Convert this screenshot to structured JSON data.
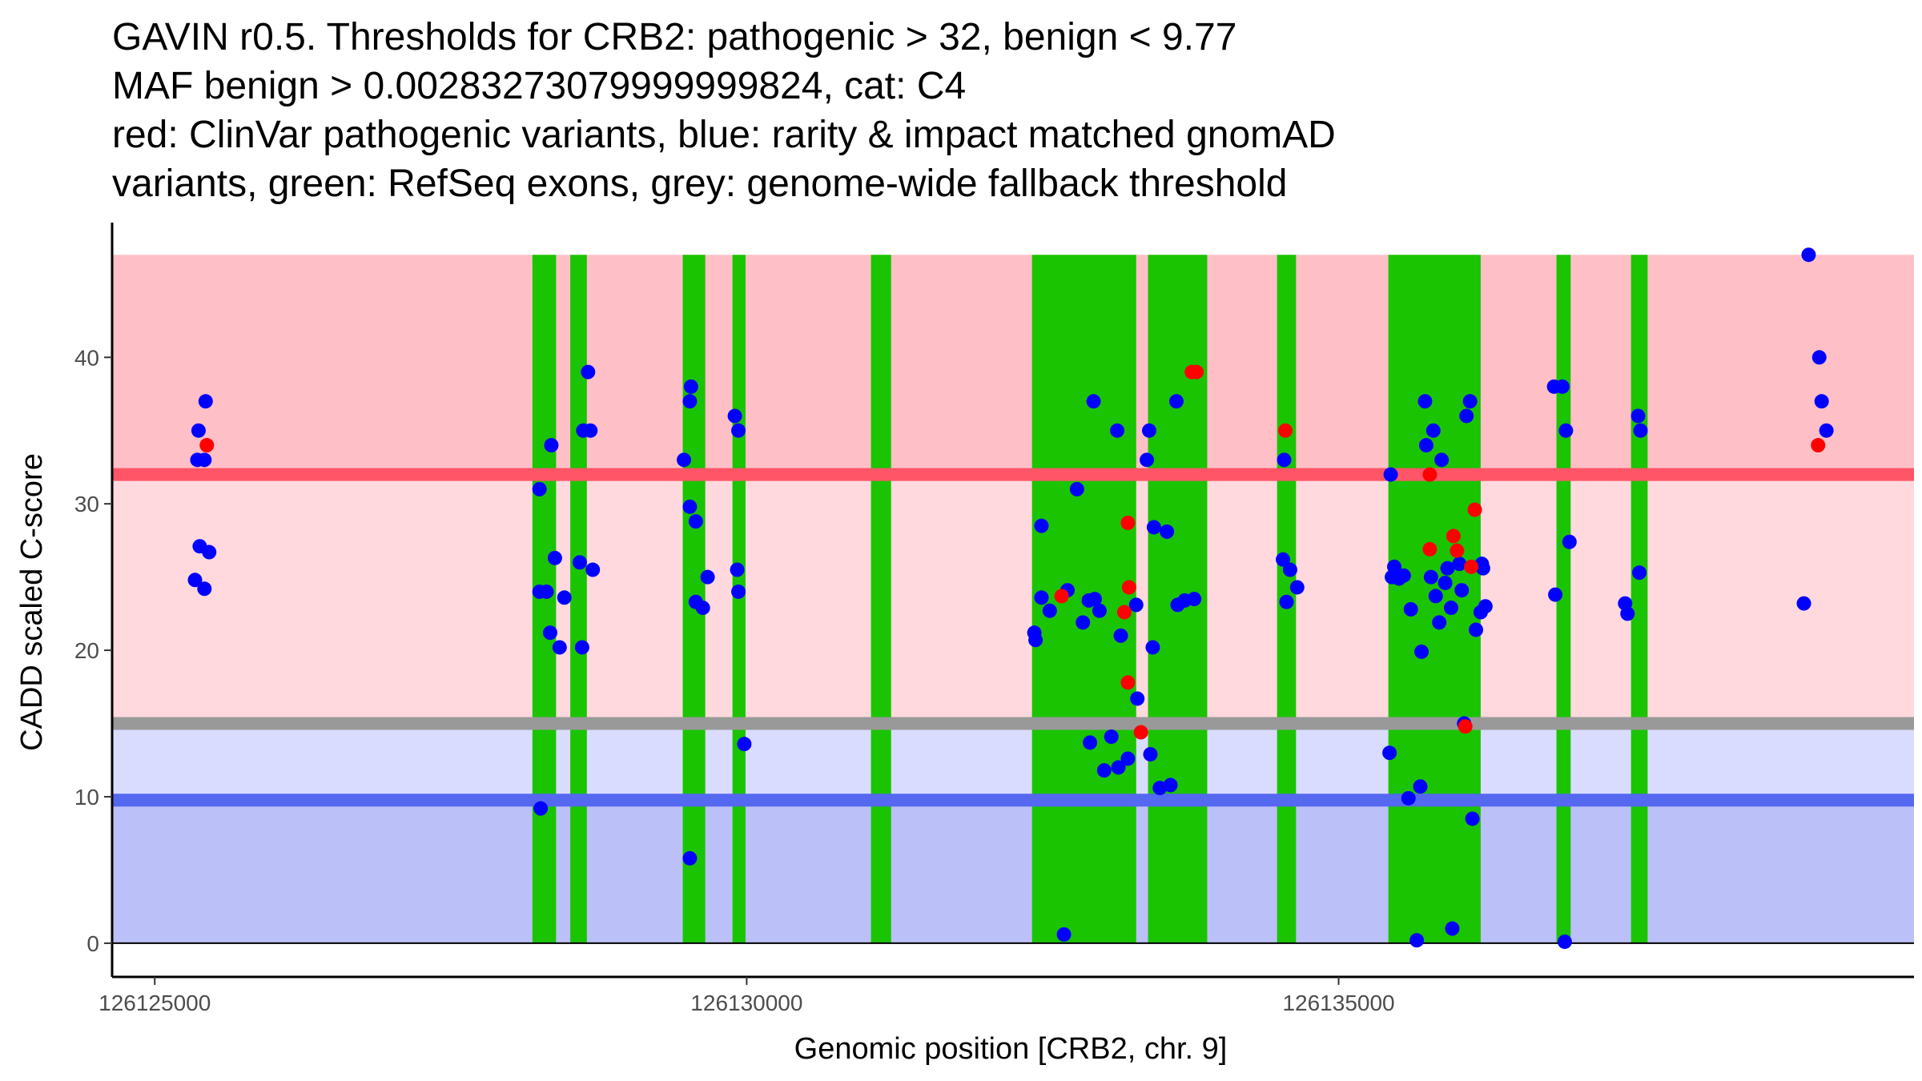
{
  "chart_data": {
    "type": "scatter",
    "title_lines": [
      "GAVIN r0.5. Thresholds for CRB2: pathogenic > 32, benign < 9.77",
      "MAF benign > 0.00283273079999999824, cat: C4",
      "red: ClinVar pathogenic variants, blue: rarity & impact matched gnomAD",
      "variants, green: RefSeq exons, grey: genome-wide fallback threshold"
    ],
    "xlabel": "Genomic position [CRB2, chr. 9]",
    "ylabel": "CADD scaled C-score",
    "xlim": [
      126124640,
      126139860
    ],
    "ylim": [
      -2.3,
      49.2
    ],
    "x_ticks": [
      126125000,
      126130000,
      126135000
    ],
    "x_tick_labels": [
      "126125000",
      "126130000",
      "126135000"
    ],
    "y_ticks": [
      0,
      10,
      20,
      30,
      40
    ],
    "y_tick_labels": [
      "0",
      "10",
      "20",
      "30",
      "40"
    ],
    "pathogenic_threshold": 32,
    "benign_threshold": 9.77,
    "fallback_threshold": 15,
    "band_top": 47,
    "colors": {
      "pathogenic_region": "#ffbfc6",
      "pathogenic_line": "#ff5566",
      "middle_pathogenic_region": "#ffd9de",
      "middle_benign_region": "#d9dcff",
      "benign_region": "#bbc0f8",
      "benign_line": "#5568f0",
      "fallback_line": "#999999",
      "exon": "#1ac400",
      "gnomad_point": "#0000ff",
      "clinvar_point": "#ff0000",
      "axis": "#000000"
    },
    "exons": [
      {
        "start": 126128190,
        "end": 126128390
      },
      {
        "start": 126128510,
        "end": 126128650
      },
      {
        "start": 126129460,
        "end": 126129650
      },
      {
        "start": 126129880,
        "end": 126129990
      },
      {
        "start": 126131050,
        "end": 126131220
      },
      {
        "start": 126132410,
        "end": 126133290
      },
      {
        "start": 126133390,
        "end": 126133890
      },
      {
        "start": 126134480,
        "end": 126134640
      },
      {
        "start": 126135420,
        "end": 126136200
      },
      {
        "start": 126136840,
        "end": 126136960
      },
      {
        "start": 126137470,
        "end": 126137610
      }
    ],
    "series": [
      {
        "name": "gnomAD (rarity & impact matched)",
        "points": [
          [
            126125370,
            35.0
          ],
          [
            126125360,
            33.0
          ],
          [
            126125430,
            37.0
          ],
          [
            126125420,
            33.0
          ],
          [
            126125380,
            27.1
          ],
          [
            126125460,
            26.7
          ],
          [
            126125340,
            24.8
          ],
          [
            126125420,
            24.2
          ],
          [
            126128250,
            31.0
          ],
          [
            126128250,
            24.0
          ],
          [
            126128310,
            24.0
          ],
          [
            126128340,
            21.2
          ],
          [
            126128350,
            34.0
          ],
          [
            126128380,
            26.3
          ],
          [
            126128420,
            20.2
          ],
          [
            126128460,
            23.6
          ],
          [
            126128260,
            9.2
          ],
          [
            126128590,
            26.0
          ],
          [
            126128620,
            35.0
          ],
          [
            126128680,
            35.0
          ],
          [
            126128660,
            39.0
          ],
          [
            126128700,
            25.5
          ],
          [
            126128610,
            20.2
          ],
          [
            126129470,
            33.0
          ],
          [
            126129530,
            38.0
          ],
          [
            126129520,
            37.0
          ],
          [
            126129520,
            29.8
          ],
          [
            126129570,
            28.8
          ],
          [
            126129570,
            23.3
          ],
          [
            126129630,
            22.9
          ],
          [
            126129670,
            25.0
          ],
          [
            126129520,
            5.8
          ],
          [
            126129900,
            36.0
          ],
          [
            126129930,
            35.0
          ],
          [
            126129920,
            25.5
          ],
          [
            126129930,
            24.0
          ],
          [
            126129980,
            13.6
          ],
          [
            126132430,
            21.2
          ],
          [
            126132440,
            20.7
          ],
          [
            126132490,
            28.5
          ],
          [
            126132490,
            23.6
          ],
          [
            126132560,
            22.7
          ],
          [
            126132680,
            0.6
          ],
          [
            126132710,
            24.1
          ],
          [
            126132790,
            31.0
          ],
          [
            126132840,
            21.9
          ],
          [
            126132890,
            23.4
          ],
          [
            126132940,
            23.5
          ],
          [
            126132980,
            22.7
          ],
          [
            126133020,
            11.8
          ],
          [
            126133080,
            14.1
          ],
          [
            126133140,
            12.0
          ],
          [
            126132900,
            13.7
          ],
          [
            126132930,
            37.0
          ],
          [
            126133130,
            35.0
          ],
          [
            126133160,
            21.0
          ],
          [
            126133220,
            12.6
          ],
          [
            126133290,
            23.1
          ],
          [
            126133300,
            16.7
          ],
          [
            126133410,
            12.9
          ],
          [
            126133430,
            20.2
          ],
          [
            126133440,
            28.4
          ],
          [
            126133490,
            10.6
          ],
          [
            126133550,
            28.1
          ],
          [
            126133580,
            10.8
          ],
          [
            126133630,
            37.0
          ],
          [
            126133640,
            23.1
          ],
          [
            126133700,
            23.4
          ],
          [
            126133780,
            23.5
          ],
          [
            126133380,
            33.0
          ],
          [
            126133400,
            35.0
          ],
          [
            126134530,
            26.2
          ],
          [
            126134540,
            33.0
          ],
          [
            126134560,
            23.3
          ],
          [
            126134590,
            25.5
          ],
          [
            126134650,
            24.3
          ],
          [
            126135440,
            32.0
          ],
          [
            126135450,
            25.0
          ],
          [
            126135470,
            25.7
          ],
          [
            126135510,
            24.9
          ],
          [
            126135550,
            25.1
          ],
          [
            126135590,
            9.9
          ],
          [
            126135610,
            22.8
          ],
          [
            126135660,
            0.2
          ],
          [
            126135700,
            19.9
          ],
          [
            126135730,
            37.0
          ],
          [
            126135740,
            34.0
          ],
          [
            126135780,
            25.0
          ],
          [
            126135800,
            35.0
          ],
          [
            126135820,
            23.7
          ],
          [
            126135850,
            21.9
          ],
          [
            126135870,
            33.0
          ],
          [
            126135900,
            24.6
          ],
          [
            126135920,
            25.6
          ],
          [
            126135950,
            22.9
          ],
          [
            126135960,
            1.0
          ],
          [
            126136020,
            25.9
          ],
          [
            126136040,
            24.1
          ],
          [
            126136060,
            15.0
          ],
          [
            126136080,
            36.0
          ],
          [
            126136110,
            37.0
          ],
          [
            126136130,
            8.5
          ],
          [
            126136160,
            21.4
          ],
          [
            126136200,
            22.6
          ],
          [
            126136220,
            25.6
          ],
          [
            126136240,
            23.0
          ],
          [
            126136210,
            25.9
          ],
          [
            126135690,
            10.7
          ],
          [
            126135430,
            13.0
          ],
          [
            126136820,
            38.0
          ],
          [
            126136890,
            38.0
          ],
          [
            126136920,
            35.0
          ],
          [
            126136950,
            27.4
          ],
          [
            126136830,
            23.8
          ],
          [
            126136910,
            0.1
          ],
          [
            126137420,
            23.2
          ],
          [
            126137440,
            22.5
          ],
          [
            126137530,
            36.0
          ],
          [
            126137550,
            35.0
          ],
          [
            126137540,
            25.3
          ],
          [
            126138970,
            47.0
          ],
          [
            126139060,
            40.0
          ],
          [
            126139080,
            37.0
          ],
          [
            126139120,
            35.0
          ],
          [
            126138930,
            23.2
          ]
        ]
      },
      {
        "name": "ClinVar pathogenic",
        "points": [
          [
            126125440,
            34.0
          ],
          [
            126132660,
            23.7
          ],
          [
            126133220,
            28.7
          ],
          [
            126133230,
            24.3
          ],
          [
            126133190,
            22.6
          ],
          [
            126133220,
            17.8
          ],
          [
            126133330,
            14.4
          ],
          [
            126133760,
            39.0
          ],
          [
            126133800,
            39.0
          ],
          [
            126134550,
            35.0
          ],
          [
            126135770,
            32.0
          ],
          [
            126135770,
            26.9
          ],
          [
            126135970,
            27.8
          ],
          [
            126136000,
            26.8
          ],
          [
            126136120,
            25.7
          ],
          [
            126136070,
            14.8
          ],
          [
            126136150,
            29.6
          ],
          [
            126139050,
            34.0
          ]
        ]
      }
    ]
  }
}
